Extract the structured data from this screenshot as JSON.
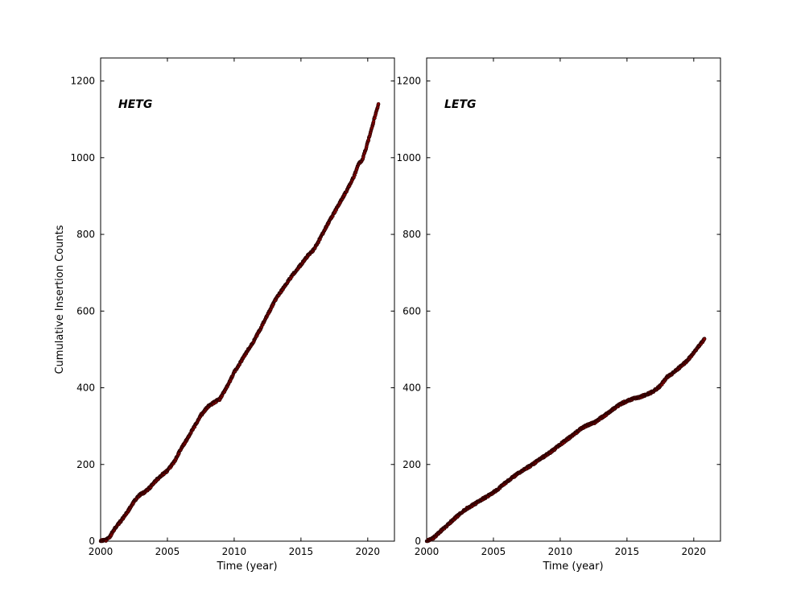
{
  "style": {
    "background": "#ffffff",
    "axis_color": "#000000",
    "marker_fill": "#8b0000",
    "marker_edge": "#1a0000"
  },
  "chart_data": [
    {
      "type": "scatter",
      "title": "HETG",
      "xlabel": "Time (year)",
      "ylabel": "Cumulative Insertion Counts",
      "xlim": [
        2000,
        2022
      ],
      "ylim": [
        0,
        1260
      ],
      "x_ticks": [
        2000,
        2005,
        2010,
        2015,
        2020
      ],
      "y_ticks": [
        0,
        200,
        400,
        600,
        800,
        1000,
        1200
      ],
      "grid": false,
      "legend": "none",
      "x": [
        2000.0,
        2000.4,
        2000.7,
        2001.0,
        2001.5,
        2002.0,
        2002.5,
        2002.9,
        2003.3,
        2003.7,
        2004.0,
        2004.5,
        2005.0,
        2005.5,
        2006.0,
        2006.5,
        2007.0,
        2007.5,
        2008.0,
        2008.4,
        2008.9,
        2009.4,
        2010.0,
        2010.5,
        2011.0,
        2011.5,
        2012.0,
        2012.5,
        2013.0,
        2013.5,
        2014.0,
        2014.5,
        2015.0,
        2015.5,
        2016.0,
        2016.5,
        2017.0,
        2017.5,
        2018.0,
        2018.5,
        2019.0,
        2019.3,
        2019.6,
        2020.0,
        2020.4,
        2020.8
      ],
      "y": [
        0,
        3,
        12,
        30,
        52,
        76,
        103,
        120,
        128,
        140,
        153,
        170,
        184,
        206,
        240,
        268,
        298,
        328,
        350,
        360,
        370,
        398,
        440,
        468,
        497,
        524,
        556,
        590,
        624,
        651,
        676,
        700,
        721,
        744,
        762,
        794,
        827,
        857,
        888,
        919,
        953,
        983,
        995,
        1040,
        1090,
        1140
      ]
    },
    {
      "type": "scatter",
      "title": "LETG",
      "xlabel": "Time (year)",
      "ylabel": "",
      "xlim": [
        2000,
        2022
      ],
      "ylim": [
        0,
        1260
      ],
      "x_ticks": [
        2000,
        2005,
        2010,
        2015,
        2020
      ],
      "y_ticks": [
        0,
        200,
        400,
        600,
        800,
        1000,
        1200
      ],
      "grid": false,
      "legend": "none",
      "x": [
        2000.0,
        2000.5,
        2001.0,
        2001.5,
        2002.0,
        2002.5,
        2003.0,
        2003.5,
        2004.0,
        2004.5,
        2005.0,
        2005.5,
        2006.0,
        2006.5,
        2007.0,
        2007.5,
        2008.0,
        2008.5,
        2009.0,
        2009.5,
        2010.0,
        2010.5,
        2011.0,
        2011.5,
        2012.0,
        2012.5,
        2013.0,
        2013.5,
        2014.0,
        2014.5,
        2015.0,
        2015.5,
        2016.0,
        2016.5,
        2017.0,
        2017.5,
        2018.0,
        2018.5,
        2019.0,
        2019.5,
        2020.0,
        2020.4,
        2020.8
      ],
      "y": [
        0,
        8,
        25,
        40,
        56,
        72,
        85,
        95,
        106,
        116,
        127,
        140,
        155,
        168,
        180,
        191,
        202,
        214,
        226,
        238,
        252,
        265,
        278,
        292,
        302,
        308,
        320,
        332,
        345,
        357,
        366,
        372,
        376,
        383,
        391,
        405,
        428,
        440,
        455,
        470,
        492,
        510,
        527
      ]
    }
  ]
}
